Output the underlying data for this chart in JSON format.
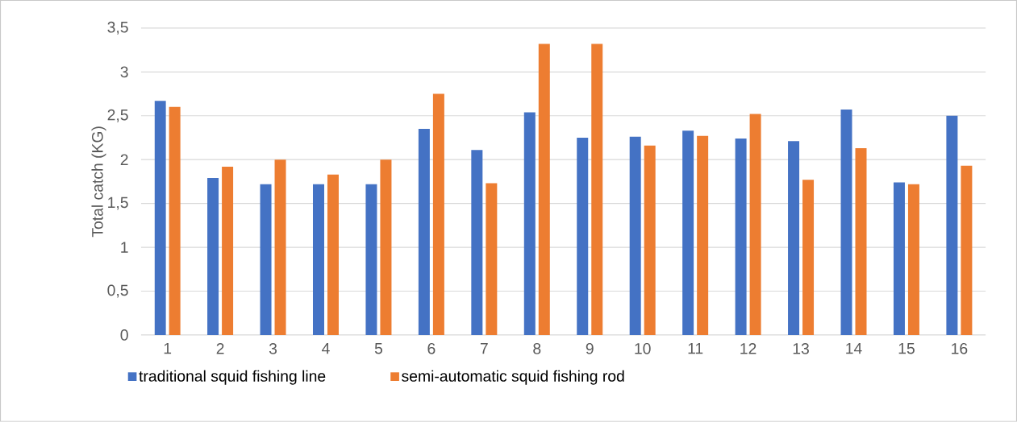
{
  "chart_data": {
    "type": "bar",
    "ylabel": "Total catch (KG)",
    "categories": [
      "1",
      "2",
      "3",
      "4",
      "5",
      "6",
      "7",
      "8",
      "9",
      "10",
      "11",
      "12",
      "13",
      "14",
      "15",
      "16"
    ],
    "series": [
      {
        "name": "traditional squid fishing line",
        "color": "#4472c4",
        "values": [
          2.67,
          1.79,
          1.72,
          1.72,
          1.72,
          2.35,
          2.11,
          2.54,
          2.25,
          2.26,
          2.33,
          2.24,
          2.21,
          2.57,
          1.74,
          2.5
        ]
      },
      {
        "name": "semi-automatic squid fishing rod",
        "color": "#ed7d31",
        "values": [
          2.6,
          1.92,
          2.0,
          1.83,
          2.0,
          2.75,
          1.73,
          3.32,
          3.32,
          2.16,
          2.27,
          2.52,
          1.77,
          2.13,
          1.72,
          1.93
        ]
      }
    ],
    "ylim": [
      0,
      3.5
    ],
    "yticks": [
      0,
      {
        "value": 0.5,
        "label": "0,5"
      },
      1,
      {
        "value": 1.5,
        "label": "1,5"
      },
      2,
      {
        "value": 2.5,
        "label": "2,5"
      },
      3,
      {
        "value": 3.5,
        "label": "3,5"
      }
    ],
    "grid": "y",
    "legend": "bottom"
  }
}
